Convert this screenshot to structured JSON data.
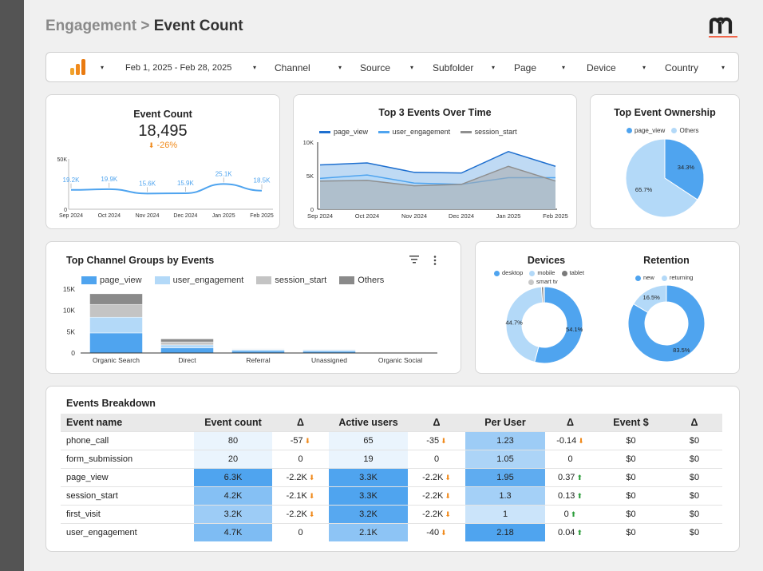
{
  "header": {
    "crumb": "Engagement",
    "separator": ">",
    "current": "Event Count"
  },
  "brand": {
    "accent": "#f08a1c",
    "primary_blue": "#4fa4ef",
    "light_blue": "#b3d9f8"
  },
  "filters": {
    "date": "Feb 1, 2025 - Feb 28, 2025",
    "channel": "Channel",
    "source": "Source",
    "subfolder": "Subfolder",
    "page": "Page",
    "device": "Device",
    "country": "Country"
  },
  "kpi": {
    "title": "Event Count",
    "value": "18,495",
    "delta": "-26%",
    "chart_data": {
      "type": "line",
      "x": [
        "Sep 2024",
        "Oct 2024",
        "Nov 2024",
        "Dec 2024",
        "Jan 2025",
        "Feb 2025"
      ],
      "values": [
        19200,
        19900,
        15600,
        15900,
        25100,
        18500
      ],
      "labels": [
        "19.2K",
        "19.9K",
        "15.6K",
        "15.9K",
        "25.1K",
        "18.5K"
      ],
      "yticks": [
        "50K",
        "0"
      ],
      "ylim": [
        0,
        50000
      ]
    }
  },
  "top3": {
    "title": "Top 3 Events Over Time",
    "chart_data": {
      "type": "area",
      "x": [
        "Sep 2024",
        "Oct 2024",
        "Nov 2024",
        "Dec 2024",
        "Jan 2025",
        "Feb 2025"
      ],
      "yticks": [
        "10K",
        "5K",
        "0"
      ],
      "ylim": [
        0,
        10000
      ],
      "series": [
        {
          "name": "page_view",
          "values": [
            6600,
            6900,
            5500,
            5400,
            8600,
            6400
          ]
        },
        {
          "name": "user_engagement",
          "values": [
            4600,
            5100,
            3900,
            3700,
            4700,
            4700
          ]
        },
        {
          "name": "session_start",
          "values": [
            4200,
            4300,
            3500,
            3700,
            6400,
            4200
          ]
        }
      ]
    }
  },
  "ownership": {
    "title": "Top Event Ownership",
    "chart_data": {
      "type": "pie",
      "series": [
        {
          "name": "page_view",
          "value": 34.3,
          "label": "34.3%"
        },
        {
          "name": "Others",
          "value": 65.7,
          "label": "65.7%"
        }
      ]
    }
  },
  "channels": {
    "title": "Top Channel Groups by Events",
    "chart_data": {
      "type": "bar",
      "categories": [
        "Organic Search",
        "Direct",
        "Referral",
        "Unassigned",
        "Organic Social"
      ],
      "yticks": [
        "15K",
        "10K",
        "5K",
        "0"
      ],
      "ylim": [
        0,
        15000
      ],
      "series": [
        {
          "name": "page_view",
          "values": [
            4700,
            1200,
            500,
            400,
            80
          ]
        },
        {
          "name": "user_engagement",
          "values": [
            3700,
            700,
            300,
            300,
            50
          ]
        },
        {
          "name": "session_start",
          "values": [
            3000,
            700,
            100,
            100,
            30
          ]
        },
        {
          "name": "Others",
          "values": [
            2500,
            700,
            100,
            100,
            30
          ]
        }
      ]
    }
  },
  "devices": {
    "title": "Devices",
    "chart_data": {
      "type": "pie",
      "series": [
        {
          "name": "desktop",
          "value": 54.1,
          "label": "54.1%"
        },
        {
          "name": "mobile",
          "value": 44.7,
          "label": "44.7%"
        },
        {
          "name": "tablet",
          "value": 0.9,
          "label": ""
        },
        {
          "name": "smart tv",
          "value": 0.3,
          "label": ""
        }
      ]
    }
  },
  "retention": {
    "title": "Retention",
    "chart_data": {
      "type": "pie",
      "series": [
        {
          "name": "new",
          "value": 83.5,
          "label": "83.5%"
        },
        {
          "name": "returning",
          "value": 16.5,
          "label": "16.5%"
        }
      ]
    }
  },
  "breakdown": {
    "title": "Events Breakdown",
    "columns": [
      "Event name",
      "Event count",
      "Δ",
      "Active users",
      "Δ",
      "Per User",
      "Δ",
      "Event $",
      "Δ"
    ],
    "rows": [
      {
        "name": "phone_call",
        "count": "80",
        "count_delta": "-57",
        "count_dir": "down",
        "users": "65",
        "users_delta": "-35",
        "users_dir": "down",
        "per_user": "1.23",
        "pu_delta": "-0.14",
        "pu_dir": "down",
        "rev": "$0",
        "rev_delta": "$0",
        "heat": [
          0.0,
          0.0,
          0.5
        ]
      },
      {
        "name": "form_submission",
        "count": "20",
        "count_delta": "0",
        "count_dir": "",
        "users": "19",
        "users_delta": "0",
        "users_dir": "",
        "per_user": "1.05",
        "pu_delta": "0",
        "pu_dir": "",
        "rev": "$0",
        "rev_delta": "$0",
        "heat": [
          0.0,
          0.0,
          0.4
        ]
      },
      {
        "name": "page_view",
        "count": "6.3K",
        "count_delta": "-2.2K",
        "count_dir": "down",
        "users": "3.3K",
        "users_delta": "-2.2K",
        "users_dir": "down",
        "per_user": "1.95",
        "pu_delta": "0.37",
        "pu_dir": "up",
        "rev": "$0",
        "rev_delta": "$0",
        "heat": [
          1.0,
          1.0,
          0.9
        ]
      },
      {
        "name": "session_start",
        "count": "4.2K",
        "count_delta": "-2.1K",
        "count_dir": "down",
        "users": "3.3K",
        "users_delta": "-2.2K",
        "users_dir": "down",
        "per_user": "1.3",
        "pu_delta": "0.13",
        "pu_dir": "up",
        "rev": "$0",
        "rev_delta": "$0",
        "heat": [
          0.65,
          1.0,
          0.45
        ]
      },
      {
        "name": "first_visit",
        "count": "3.2K",
        "count_delta": "-2.2K",
        "count_dir": "down",
        "users": "3.2K",
        "users_delta": "-2.2K",
        "users_dir": "down",
        "per_user": "1",
        "pu_delta": "0",
        "pu_dir": "up",
        "rev": "$0",
        "rev_delta": "$0",
        "heat": [
          0.5,
          0.95,
          0.2
        ]
      },
      {
        "name": "user_engagement",
        "count": "4.7K",
        "count_delta": "0",
        "count_dir": "",
        "users": "2.1K",
        "users_delta": "-40",
        "users_dir": "down",
        "per_user": "2.18",
        "pu_delta": "0.04",
        "pu_dir": "up",
        "rev": "$0",
        "rev_delta": "$0",
        "heat": [
          0.7,
          0.6,
          1.0
        ]
      }
    ]
  }
}
